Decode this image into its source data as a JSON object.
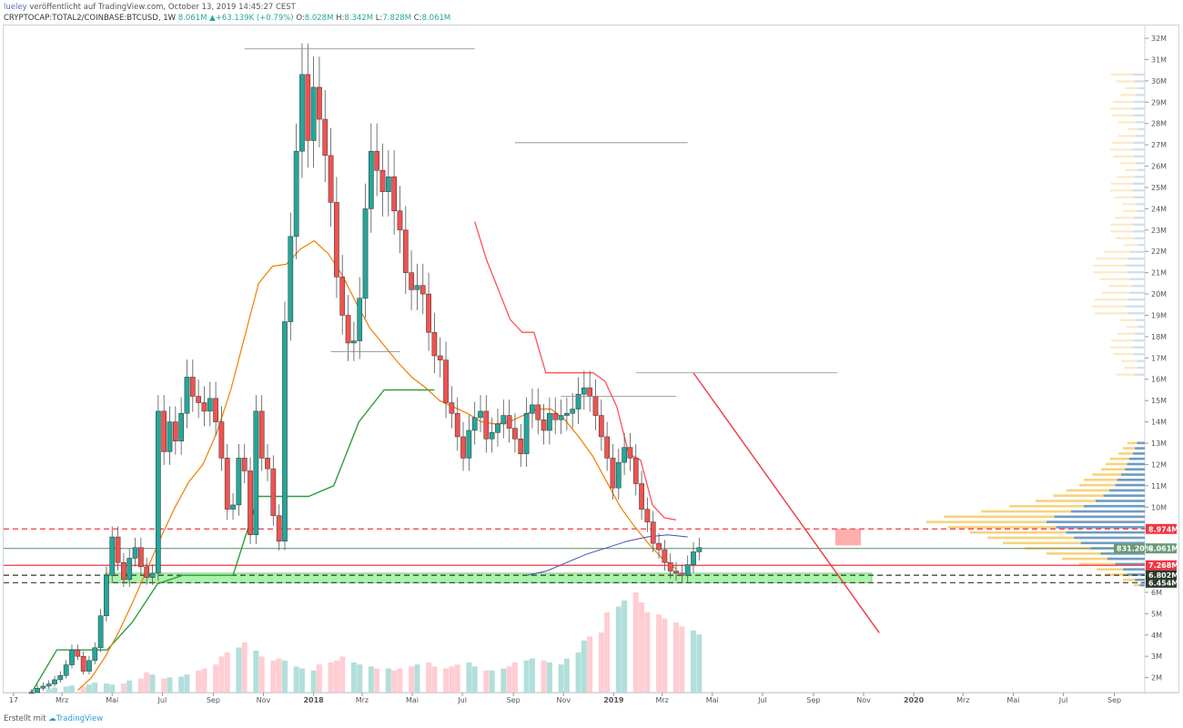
{
  "header": {
    "author": "lueley",
    "published_text": "veröffentlicht auf TradingView.com, October 13, 2019 14:45:27 CEST",
    "symbol": "CRYPTOCAP:TOTAL2/COINBASE:BTCUSD, 1W",
    "last": "8.061M",
    "change": "+63.139K (+0.79%)",
    "o_label": "O:",
    "o": "8.028M",
    "h_label": "H:",
    "h": "8.342M",
    "l_label": "L:",
    "l": "7.828M",
    "c_label": "C:",
    "c": "8.061M"
  },
  "footer": {
    "text": "Erstellt mit",
    "brand": "TradingView"
  },
  "colors": {
    "up": "#26a69a",
    "down": "#ef5350",
    "ema_orange": "#f57c00",
    "ema_red": "#ff5252",
    "green_line": "#2e9e3e",
    "blue_line": "#3f51b5",
    "vol_up": "#b2dfdb",
    "vol_down": "#ffcdd2",
    "vp_yellow": "#f6c353",
    "vp_blue": "#4a90d9"
  },
  "chart_data": {
    "type": "candlestick",
    "interval": "1W",
    "y_unit": "M",
    "ylim": [
      1.3,
      32.6
    ],
    "y_ticks": [
      "2M",
      "3M",
      "4M",
      "5M",
      "6M",
      "7M",
      "8M",
      "9M",
      "10M",
      "11M",
      "12M",
      "13M",
      "14M",
      "15M",
      "16M",
      "17M",
      "18M",
      "19M",
      "20M",
      "21M",
      "22M",
      "23M",
      "24M",
      "25M",
      "26M",
      "27M",
      "28M",
      "29M",
      "30M",
      "31M",
      "32M"
    ],
    "x_ticks": [
      "17",
      "Mrz",
      "Mai",
      "Jul",
      "Sep",
      "Nov",
      "2018",
      "Mrz",
      "Mai",
      "Jul",
      "Sep",
      "Nov",
      "2019",
      "Mrz",
      "Mai",
      "Jul",
      "Sep",
      "Nov",
      "2020",
      "Mrz",
      "Mai",
      "Jul",
      "Sep"
    ],
    "x_tick_dates": [
      "2017-01-01",
      "2017-03-01",
      "2017-05-01",
      "2017-07-01",
      "2017-09-01",
      "2017-11-01",
      "2018-01-01",
      "2018-03-01",
      "2018-05-01",
      "2018-07-01",
      "2018-09-01",
      "2018-11-01",
      "2019-01-01",
      "2019-03-01",
      "2019-05-01",
      "2019-07-01",
      "2019-09-01",
      "2019-11-01",
      "2020-01-01",
      "2020-03-01",
      "2020-05-01",
      "2020-07-01",
      "2020-09-01"
    ],
    "candles_close": [
      1.3,
      1.5,
      1.6,
      1.7,
      1.9,
      2.1,
      2.6,
      3.3,
      3.0,
      2.3,
      2.8,
      3.4,
      4.9,
      6.8,
      8.6,
      7.4,
      6.6,
      7.6,
      8.1,
      7.2,
      6.7,
      6.9,
      14.5,
      12.6,
      14.0,
      13.1,
      14.4,
      16.1,
      15.2,
      14.9,
      14.5,
      15.1,
      14.0,
      12.3,
      9.9,
      10.1,
      12.3,
      11.7,
      8.7,
      14.5,
      12.3,
      11.8,
      9.6,
      8.4,
      18.7,
      22.7,
      26.7,
      30.3,
      27.2,
      29.7,
      28.2,
      26.5,
      24.3,
      20.8,
      19.0,
      17.7,
      17.8,
      19.8,
      24.0,
      26.7,
      25.8,
      24.8,
      25.5,
      23.9,
      23.0,
      21.0,
      20.2,
      20.4,
      20.0,
      18.2,
      17.1,
      16.9,
      14.9,
      14.4,
      13.3,
      12.3,
      13.6,
      14.2,
      14.5,
      13.2,
      13.5,
      13.9,
      14.3,
      13.7,
      13.2,
      12.5,
      14.4,
      14.8,
      14.1,
      13.6,
      14.4,
      14.1,
      14.3,
      14.4,
      14.6,
      15.3,
      15.6,
      15.2,
      14.3,
      13.3,
      12.3,
      10.9,
      12.1,
      12.8,
      12.3,
      11.1,
      9.9,
      9.3,
      8.3,
      8.0,
      7.4,
      7.0,
      6.9,
      6.8,
      7.3,
      7.9,
      8.1
    ],
    "ema_orange": [
      1.4,
      2.0,
      3.0,
      4.2,
      5.6,
      7.1,
      8.6,
      10.0,
      11.2,
      12.0,
      13.5,
      15.5,
      18.0,
      20.5,
      21.3,
      21.4,
      22.1,
      22.5,
      21.9,
      20.9,
      19.6,
      18.4,
      17.6,
      16.8,
      16.1,
      15.6,
      15.0,
      14.7,
      14.4,
      14.0,
      13.9,
      14.0,
      14.3,
      14.6,
      14.6,
      14.1,
      13.3,
      12.4,
      11.2,
      10.0,
      9.1,
      8.3,
      7.6,
      7.1
    ],
    "ema_red": [
      23.4,
      21.6,
      20.2,
      18.8,
      18.2,
      18.2,
      16.3,
      16.3,
      16.3,
      16.3,
      16.3,
      15.9,
      14.7,
      12.5,
      12.2,
      10.1,
      9.5,
      9.4
    ],
    "green_line": [
      1.3,
      3.3,
      3.3,
      3.3,
      4.6,
      6.4,
      6.8,
      6.8,
      6.8,
      10.5,
      10.5,
      10.5,
      11.0,
      14.0,
      15.5,
      15.5,
      15.5
    ],
    "blue_line": [
      6.8,
      7.0,
      7.4,
      7.8,
      8.1,
      8.4,
      8.6,
      8.7,
      8.6
    ],
    "volume_relative": [
      0.02,
      0.03,
      0.04,
      0.05,
      0.06,
      0.07,
      0.06,
      0.08,
      0.1,
      0.09,
      0.08,
      0.09,
      0.12,
      0.14,
      0.2,
      0.18,
      0.14,
      0.15,
      0.16,
      0.18,
      0.22,
      0.24,
      0.28,
      0.36,
      0.4,
      0.45,
      0.5,
      0.42,
      0.36,
      0.32,
      0.34,
      0.32,
      0.26,
      0.24,
      0.22,
      0.28,
      0.3,
      0.32,
      0.36,
      0.3,
      0.28,
      0.26,
      0.24,
      0.24,
      0.22,
      0.24,
      0.26,
      0.28,
      0.3,
      0.26,
      0.24,
      0.26,
      0.28,
      0.3,
      0.26,
      0.22,
      0.22,
      0.24,
      0.26,
      0.3,
      0.32,
      0.34,
      0.32,
      0.3,
      0.28,
      0.34,
      0.4,
      0.52,
      0.56,
      0.6,
      0.8,
      0.86,
      0.92,
      1.0,
      0.9,
      0.8,
      0.78,
      0.74,
      0.7,
      0.66,
      0.62,
      0.58
    ],
    "volume_profile_relative": [
      0.05,
      0.1,
      0.18,
      0.22,
      0.3,
      0.38,
      0.45,
      0.55,
      0.65,
      0.72,
      0.8,
      0.9,
      1.0,
      0.92,
      0.75,
      0.62,
      0.5,
      0.42,
      0.36,
      0.3,
      0.28,
      0.24,
      0.2,
      0.18,
      0.16,
      0.12,
      0.1,
      0.08
    ],
    "horizontal_levels": [
      {
        "value": 8.974,
        "label": "8.974M",
        "style": "dashed",
        "color": "#f23645"
      },
      {
        "value": 8.061,
        "label": "8.061M",
        "style": "solid",
        "color": "#6b9a7a",
        "extra": "831.20%"
      },
      {
        "value": 7.268,
        "label": "7.268M",
        "style": "solid",
        "color": "#f23645"
      },
      {
        "value": 6.802,
        "label": "6.802M",
        "style": "dashed",
        "color": "#2b3a2b"
      },
      {
        "value": 6.454,
        "label": "6.454M",
        "style": "dashed",
        "color": "#2b3a2b"
      }
    ],
    "support_zone": [
      6.45,
      6.9
    ],
    "trendline": {
      "from_date": "2019-04-08",
      "from_value": 16.3,
      "to_date": "2019-11-20",
      "to_value": 4.1
    }
  }
}
